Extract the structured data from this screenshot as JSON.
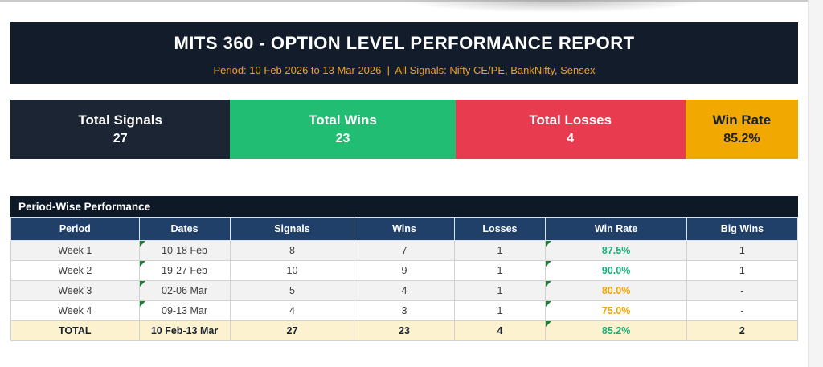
{
  "header": {
    "title": "MITS 360 - OPTION LEVEL PERFORMANCE REPORT",
    "subtitle": "Period: 10 Feb 2026 to 13 Mar 2026  |  All Signals: Nifty CE/PE, BankNifty, Sensex",
    "bg_color": "#131c2b",
    "subtitle_color": "#efa224"
  },
  "stats": [
    {
      "label": "Total Signals",
      "value": "27",
      "bg": "#1b2533",
      "fg": "#ffffff"
    },
    {
      "label": "Total Wins",
      "value": "23",
      "bg": "#21bd72",
      "fg": "#ffffff"
    },
    {
      "label": "Total Losses",
      "value": "4",
      "bg": "#e93b4f",
      "fg": "#ffffff"
    },
    {
      "label": "Win Rate",
      "value": "85.2%",
      "bg": "#f1a800",
      "fg": "#16202e"
    }
  ],
  "table": {
    "title": "Period-Wise Performance",
    "columns": [
      "Period",
      "Dates",
      "Signals",
      "Wins",
      "Losses",
      "Win Rate",
      "Big Wins"
    ],
    "header_bg": "#20406a",
    "flag_color": "#1e7e34",
    "win_rate_green": "#12b178",
    "win_rate_orange": "#f0a500",
    "rows": [
      {
        "period": "Week 1",
        "dates": "10-18 Feb",
        "signals": "8",
        "wins": "7",
        "losses": "1",
        "win_rate": "87.5%",
        "win_rate_color": "#12b178",
        "big_wins": "1",
        "dates_flag": true,
        "win_rate_flag": true,
        "is_total": false
      },
      {
        "period": "Week 2",
        "dates": "19-27 Feb",
        "signals": "10",
        "wins": "9",
        "losses": "1",
        "win_rate": "90.0%",
        "win_rate_color": "#12b178",
        "big_wins": "1",
        "dates_flag": true,
        "win_rate_flag": true,
        "is_total": false
      },
      {
        "period": "Week 3",
        "dates": "02-06 Mar",
        "signals": "5",
        "wins": "4",
        "losses": "1",
        "win_rate": "80.0%",
        "win_rate_color": "#f0a500",
        "big_wins": "-",
        "dates_flag": true,
        "win_rate_flag": true,
        "is_total": false
      },
      {
        "period": "Week 4",
        "dates": "09-13 Mar",
        "signals": "4",
        "wins": "3",
        "losses": "1",
        "win_rate": "75.0%",
        "win_rate_color": "#f0a500",
        "big_wins": "-",
        "dates_flag": true,
        "win_rate_flag": true,
        "is_total": false
      },
      {
        "period": "TOTAL",
        "dates": "10 Feb-13 Mar",
        "signals": "27",
        "wins": "23",
        "losses": "4",
        "win_rate": "85.2%",
        "win_rate_color": "#12b178",
        "big_wins": "2",
        "dates_flag": false,
        "win_rate_flag": true,
        "is_total": true
      }
    ]
  }
}
